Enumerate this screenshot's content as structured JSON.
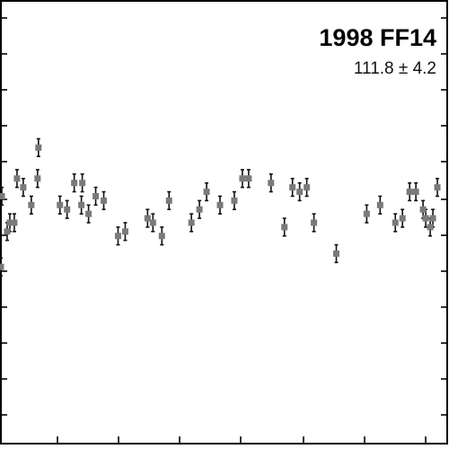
{
  "chart_data": {
    "type": "scatter",
    "title": "1998 FF14",
    "subtitle": "111.8 ± 4.2",
    "xlabel": "",
    "ylabel": "",
    "xlim": [
      0,
      1
    ],
    "ylim": [
      0,
      1
    ],
    "grid": false,
    "marker_color": "#7a7a7a",
    "error_bar_color": "#111111",
    "series": [
      {
        "x": [
          0.002,
          0.004,
          0.016,
          0.022,
          0.032,
          0.038,
          0.052,
          0.07,
          0.084,
          0.086,
          0.134,
          0.15,
          0.166,
          0.182,
          0.184,
          0.198,
          0.214,
          0.232,
          0.264,
          0.28,
          0.33,
          0.342,
          0.362,
          0.378,
          0.428,
          0.446,
          0.462,
          0.492,
          0.524,
          0.542,
          0.556,
          0.606,
          0.636,
          0.654,
          0.67,
          0.686,
          0.702,
          0.752,
          0.82,
          0.85,
          0.884,
          0.9,
          0.916,
          0.93,
          0.946,
          0.952,
          0.962,
          0.968,
          0.978
        ],
        "y": [
          0.4,
          0.56,
          0.48,
          0.5,
          0.5,
          0.6,
          0.58,
          0.54,
          0.6,
          0.67,
          0.54,
          0.53,
          0.59,
          0.54,
          0.59,
          0.52,
          0.56,
          0.55,
          0.47,
          0.48,
          0.51,
          0.5,
          0.47,
          0.55,
          0.5,
          0.53,
          0.57,
          0.54,
          0.55,
          0.6,
          0.6,
          0.59,
          0.49,
          0.58,
          0.57,
          0.58,
          0.5,
          0.43,
          0.52,
          0.54,
          0.5,
          0.51,
          0.57,
          0.57,
          0.53,
          0.51,
          0.49,
          0.51,
          0.58
        ]
      }
    ]
  }
}
